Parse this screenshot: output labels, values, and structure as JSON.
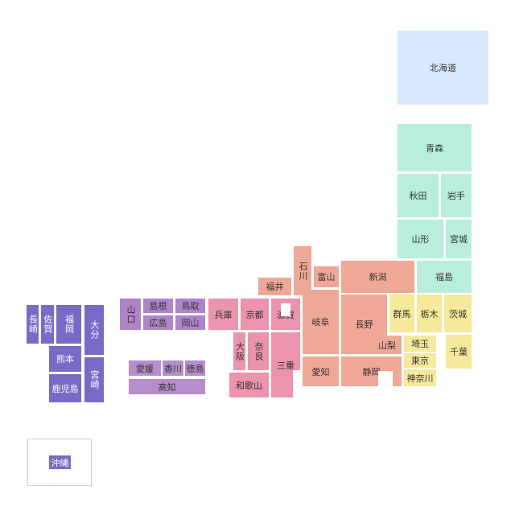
{
  "prefectures": [
    "北海道",
    "青森",
    "秋田",
    "岩手",
    "山形",
    "宮城",
    "福島",
    "群馬",
    "栃木",
    "茨城",
    "埼玉",
    "千葉",
    "東京",
    "神奈川",
    "新潟",
    "石川",
    "富山",
    "福井",
    "岐阜",
    "長野",
    "山梨",
    "愛知",
    "静岡",
    "兵庫",
    "京都",
    "滋賀",
    "大阪",
    "奈良",
    "三重",
    "和歌山",
    "山口",
    "島根",
    "鳥取",
    "広島",
    "岡山",
    "愛媛",
    "香川",
    "徳島",
    "高知",
    "長崎",
    "佐賀",
    "福岡",
    "大分",
    "熊本",
    "宮崎",
    "鹿児島",
    "沖縄"
  ]
}
